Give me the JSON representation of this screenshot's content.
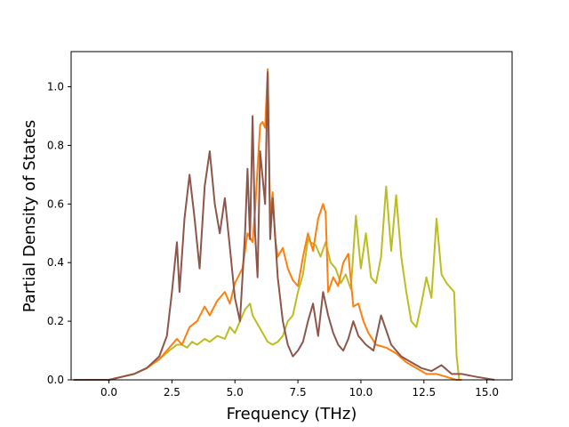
{
  "chart_data": {
    "type": "line",
    "xlabel": "Frequency (THz)",
    "ylabel": "Partial Density of States",
    "xlim": [
      -1.5,
      16.0
    ],
    "ylim": [
      0.0,
      1.12
    ],
    "xticks": [
      0.0,
      2.5,
      5.0,
      7.5,
      10.0,
      12.5,
      15.0
    ],
    "xtick_labels": [
      "0.0",
      "2.5",
      "5.0",
      "7.5",
      "10.0",
      "12.5",
      "15.0"
    ],
    "yticks": [
      0.0,
      0.2,
      0.4,
      0.6,
      0.8,
      1.0
    ],
    "ytick_labels": [
      "0.0",
      "0.2",
      "0.4",
      "0.6",
      "0.8",
      "1.0"
    ],
    "grid": false,
    "legend": "none",
    "series": [
      {
        "color": "#bcbd22",
        "x": [
          -1.4,
          0.0,
          0.5,
          1.0,
          1.5,
          2.0,
          2.4,
          2.7,
          2.9,
          3.1,
          3.3,
          3.5,
          3.8,
          4.0,
          4.3,
          4.6,
          4.8,
          5.0,
          5.2,
          5.4,
          5.6,
          5.7,
          5.9,
          6.1,
          6.3,
          6.5,
          6.7,
          6.9,
          7.1,
          7.3,
          7.5,
          7.7,
          7.9,
          8.0,
          8.2,
          8.4,
          8.6,
          8.8,
          9.0,
          9.2,
          9.4,
          9.6,
          9.8,
          10.0,
          10.2,
          10.4,
          10.6,
          10.8,
          11.0,
          11.2,
          11.4,
          11.6,
          11.8,
          12.0,
          12.2,
          12.4,
          12.6,
          12.8,
          13.0,
          13.2,
          13.4,
          13.6,
          13.7,
          13.8,
          13.9
        ],
        "y": [
          0.0,
          0.0,
          0.01,
          0.02,
          0.04,
          0.07,
          0.1,
          0.12,
          0.12,
          0.11,
          0.13,
          0.12,
          0.14,
          0.13,
          0.15,
          0.14,
          0.18,
          0.16,
          0.2,
          0.24,
          0.26,
          0.22,
          0.19,
          0.16,
          0.13,
          0.12,
          0.13,
          0.15,
          0.2,
          0.22,
          0.3,
          0.36,
          0.48,
          0.47,
          0.46,
          0.42,
          0.47,
          0.4,
          0.38,
          0.33,
          0.36,
          0.31,
          0.56,
          0.38,
          0.5,
          0.35,
          0.33,
          0.42,
          0.66,
          0.44,
          0.63,
          0.42,
          0.3,
          0.2,
          0.18,
          0.26,
          0.35,
          0.28,
          0.55,
          0.36,
          0.33,
          0.31,
          0.3,
          0.08,
          0.0
        ]
      },
      {
        "color": "#ff7f0e",
        "x": [
          -1.4,
          0.0,
          0.5,
          1.0,
          1.5,
          2.0,
          2.4,
          2.7,
          2.9,
          3.2,
          3.5,
          3.8,
          4.0,
          4.3,
          4.6,
          4.8,
          5.0,
          5.3,
          5.5,
          5.7,
          5.8,
          6.0,
          6.1,
          6.2,
          6.3,
          6.4,
          6.5,
          6.6,
          6.7,
          6.9,
          7.1,
          7.3,
          7.5,
          7.7,
          7.9,
          8.1,
          8.3,
          8.5,
          8.6,
          8.7,
          8.9,
          9.1,
          9.3,
          9.5,
          9.7,
          9.9,
          10.1,
          10.3,
          10.6,
          11.0,
          11.4,
          11.8,
          12.2,
          12.6,
          13.0,
          13.4,
          13.8,
          14.0
        ],
        "y": [
          0.0,
          0.0,
          0.01,
          0.02,
          0.04,
          0.07,
          0.11,
          0.14,
          0.12,
          0.18,
          0.2,
          0.25,
          0.22,
          0.27,
          0.3,
          0.26,
          0.33,
          0.38,
          0.5,
          0.47,
          0.58,
          0.87,
          0.88,
          0.86,
          1.06,
          0.55,
          0.64,
          0.48,
          0.42,
          0.45,
          0.38,
          0.34,
          0.32,
          0.42,
          0.5,
          0.44,
          0.55,
          0.6,
          0.57,
          0.3,
          0.35,
          0.32,
          0.4,
          0.43,
          0.25,
          0.26,
          0.2,
          0.16,
          0.12,
          0.11,
          0.09,
          0.06,
          0.04,
          0.02,
          0.02,
          0.01,
          0.0,
          0.0
        ]
      },
      {
        "color": "#8c564b",
        "x": [
          -1.4,
          0.0,
          0.5,
          1.0,
          1.5,
          2.0,
          2.3,
          2.5,
          2.7,
          2.8,
          3.0,
          3.2,
          3.4,
          3.6,
          3.8,
          4.0,
          4.2,
          4.4,
          4.6,
          4.8,
          5.0,
          5.2,
          5.4,
          5.5,
          5.6,
          5.7,
          5.8,
          5.9,
          6.0,
          6.2,
          6.3,
          6.4,
          6.5,
          6.7,
          6.9,
          7.1,
          7.3,
          7.5,
          7.7,
          7.9,
          8.1,
          8.3,
          8.5,
          8.7,
          8.9,
          9.1,
          9.3,
          9.5,
          9.7,
          9.9,
          10.2,
          10.5,
          10.8,
          11.2,
          11.6,
          12.0,
          12.4,
          12.8,
          13.2,
          13.6,
          14.0,
          14.6,
          15.3
        ],
        "y": [
          0.0,
          0.0,
          0.01,
          0.02,
          0.04,
          0.08,
          0.15,
          0.3,
          0.47,
          0.3,
          0.55,
          0.7,
          0.55,
          0.38,
          0.66,
          0.78,
          0.6,
          0.5,
          0.62,
          0.45,
          0.28,
          0.2,
          0.5,
          0.72,
          0.48,
          0.9,
          0.5,
          0.35,
          0.78,
          0.6,
          1.05,
          0.48,
          0.62,
          0.35,
          0.2,
          0.12,
          0.08,
          0.1,
          0.13,
          0.2,
          0.26,
          0.15,
          0.3,
          0.22,
          0.16,
          0.12,
          0.1,
          0.14,
          0.2,
          0.15,
          0.12,
          0.1,
          0.22,
          0.12,
          0.08,
          0.06,
          0.04,
          0.03,
          0.05,
          0.02,
          0.02,
          0.01,
          0.0
        ]
      }
    ]
  }
}
